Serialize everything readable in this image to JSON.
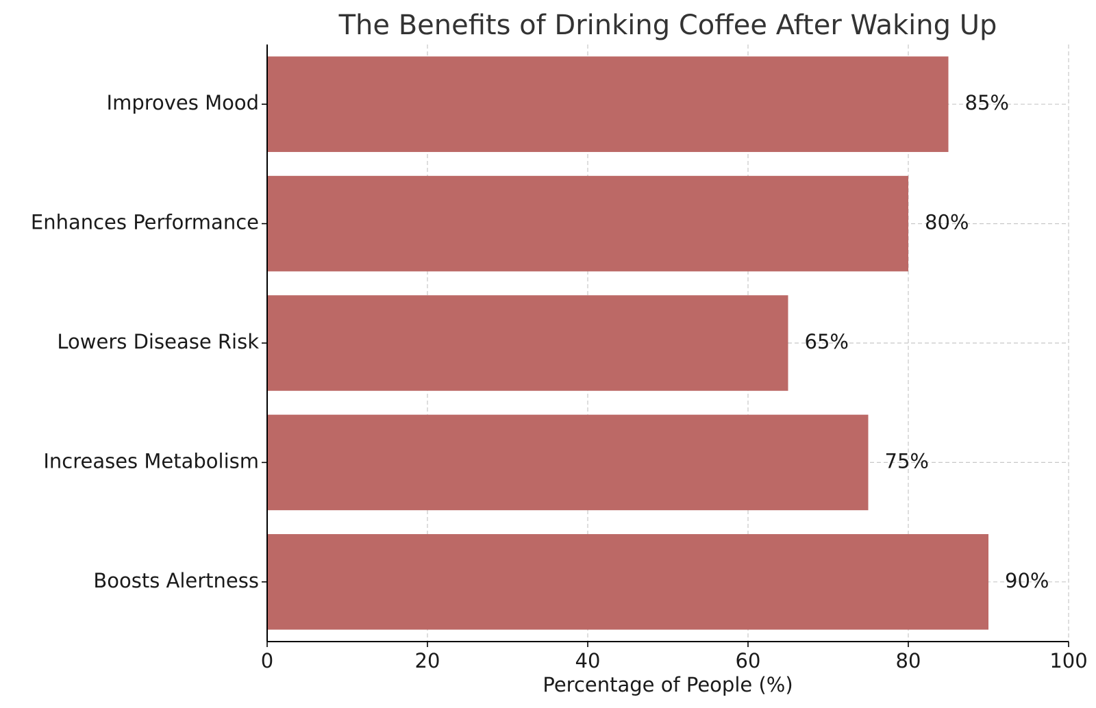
{
  "chart_data": {
    "type": "bar",
    "orientation": "horizontal",
    "title": "The Benefits of Drinking Coffee After Waking Up",
    "xlabel": "Percentage of People (%)",
    "ylabel": "",
    "categories": [
      "Improves Mood",
      "Enhances Performance",
      "Lowers Disease Risk",
      "Increases Metabolism",
      "Boosts Alertness"
    ],
    "values": [
      85,
      80,
      65,
      75,
      90
    ],
    "value_labels": [
      "85%",
      "80%",
      "65%",
      "75%",
      "90%"
    ],
    "xlim": [
      0,
      100
    ],
    "xticks": [
      0,
      20,
      40,
      60,
      80,
      100
    ],
    "xtick_labels": [
      "0",
      "20",
      "40",
      "60",
      "80",
      "100"
    ],
    "grid": true,
    "bar_color": "#bc6966"
  }
}
